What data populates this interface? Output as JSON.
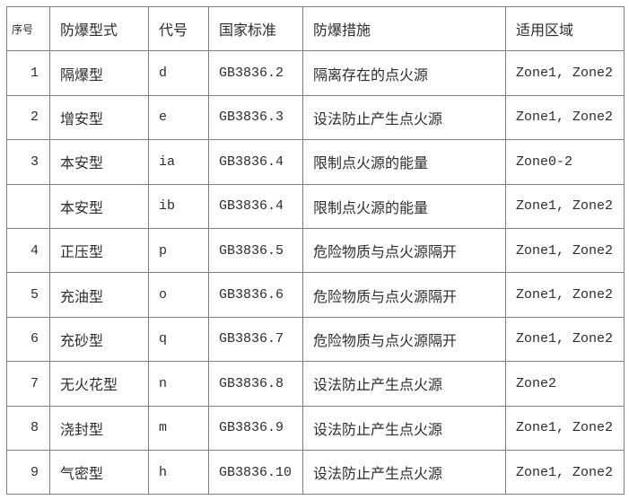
{
  "table": {
    "headers": [
      "序号",
      "防爆型式",
      "代号",
      "国家标准",
      "防爆措施",
      "适用区域"
    ],
    "rows": [
      [
        "1",
        "隔爆型",
        "d",
        "GB3836.2",
        "隔离存在的点火源",
        "Zone1, Zone2"
      ],
      [
        "2",
        "增安型",
        "e",
        "GB3836.3",
        "设法防止产生点火源",
        "Zone1, Zone2"
      ],
      [
        "3",
        "本安型",
        "ia",
        "GB3836.4",
        "限制点火源的能量",
        "Zone0-2"
      ],
      [
        "",
        "本安型",
        "ib",
        "GB3836.4",
        "限制点火源的能量",
        "Zone1, Zone2"
      ],
      [
        "4",
        "正压型",
        "p",
        "GB3836.5",
        "危险物质与点火源隔开",
        "Zone1, Zone2"
      ],
      [
        "5",
        "充油型",
        "o",
        "GB3836.6",
        "危险物质与点火源隔开",
        "Zone1, Zone2"
      ],
      [
        "6",
        "充砂型",
        "q",
        "GB3836.7",
        "危险物质与点火源隔开",
        "Zone1, Zone2"
      ],
      [
        "7",
        "无火花型",
        "n",
        "GB3836.8",
        "设法防止产生点火源",
        "Zone2"
      ],
      [
        "8",
        "浇封型",
        "m",
        "GB3836.9",
        "设法防止产生点火源",
        "Zone1, Zone2"
      ],
      [
        "9",
        "气密型",
        "h",
        "GB3836.10",
        "设法防止产生点火源",
        "Zone1, Zone2"
      ]
    ],
    "colors": {
      "border": "#7f7f7f",
      "text": "#2d2d2d",
      "background": "#ffffff"
    }
  }
}
